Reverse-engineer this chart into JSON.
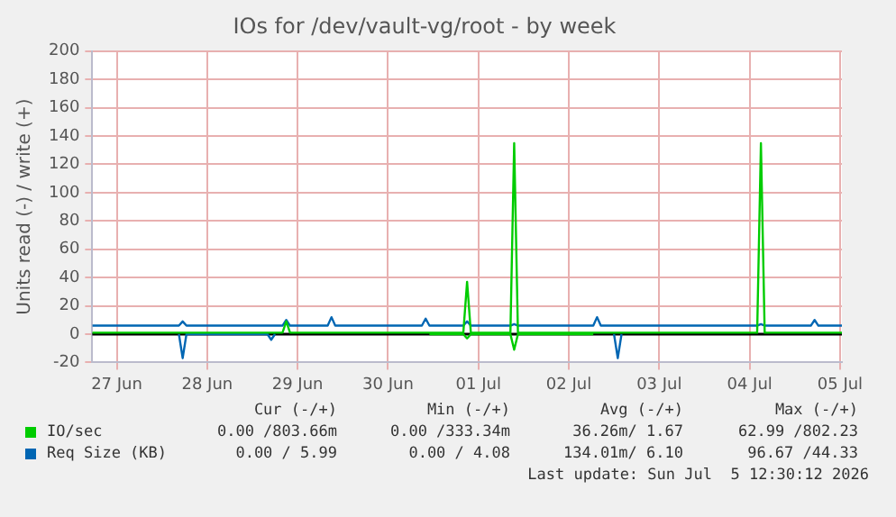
{
  "chart_data": {
    "type": "line",
    "title": "IOs for /dev/vault-vg/root - by week",
    "ylabel": "Units read (-) / write (+)",
    "x": [
      "2026-06-27T05:30",
      "2026-06-28T04:30",
      "2026-06-28T05:30",
      "2026-06-28T06:30",
      "2026-06-29T04:00",
      "2026-06-29T05:00",
      "2026-06-29T06:00",
      "2026-06-29T08:00",
      "2026-06-29T09:00",
      "2026-06-29T10:00",
      "2026-06-29T20:00",
      "2026-06-29T21:00",
      "2026-06-29T22:00",
      "2026-06-30T21:00",
      "2026-06-30T22:00",
      "2026-06-30T23:00",
      "2026-07-01T08:00",
      "2026-07-01T09:00",
      "2026-07-01T10:00",
      "2026-07-01T20:30",
      "2026-07-01T21:30",
      "2026-07-01T22:30",
      "2026-07-02T18:30",
      "2026-07-02T19:30",
      "2026-07-02T20:30",
      "2026-07-03T00:00",
      "2026-07-03T01:00",
      "2026-07-03T02:00",
      "2026-07-04T14:00",
      "2026-07-04T15:00",
      "2026-07-04T16:00",
      "2026-07-05T04:15",
      "2026-07-05T05:15",
      "2026-07-05T06:15",
      "2026-07-05T12:30"
    ],
    "series": [
      {
        "name": "IO/sec",
        "color": "#00cc00",
        "values": [
          1,
          1,
          1,
          1,
          1,
          1,
          1,
          1,
          9,
          1,
          1,
          1,
          1,
          1,
          1,
          1,
          1,
          37,
          1,
          1,
          135,
          1,
          1,
          1,
          1,
          1,
          1,
          1,
          1,
          135,
          1,
          1,
          1,
          1,
          1
        ]
      },
      {
        "name": "Req Size (KB)",
        "color": "#0066b3",
        "values": [
          6,
          6,
          9,
          6,
          6,
          6,
          6,
          6,
          10,
          6,
          6,
          12,
          6,
          6,
          11,
          6,
          6,
          9,
          6,
          6,
          7,
          6,
          6,
          12,
          6,
          6,
          6,
          6,
          6,
          7,
          6,
          6,
          10,
          6,
          6
        ]
      },
      {
        "color": "#00cc00",
        "values": [
          null,
          null,
          null,
          null,
          null,
          null,
          null,
          null,
          null,
          null,
          null,
          null,
          null,
          null,
          null,
          0,
          0,
          -3,
          0,
          0,
          -11,
          0,
          0,
          null,
          null,
          null,
          null,
          null,
          null,
          null,
          null,
          null,
          null,
          null,
          null
        ]
      },
      {
        "color": "#0066b3",
        "values": [
          null,
          0,
          -17,
          0,
          0,
          -4,
          0,
          null,
          null,
          null,
          null,
          null,
          null,
          null,
          null,
          null,
          null,
          null,
          null,
          null,
          null,
          null,
          null,
          null,
          null,
          0,
          -17,
          0,
          null,
          null,
          null,
          null,
          null,
          null,
          null
        ]
      }
    ],
    "xlim": [
      "2026-06-27T05:30",
      "2026-07-05T12:30"
    ],
    "xticks": [
      {
        "value": "2026-06-27T12:00",
        "label": "27 Jun"
      },
      {
        "value": "2026-06-28T12:00",
        "label": "28 Jun"
      },
      {
        "value": "2026-06-29T12:00",
        "label": "29 Jun"
      },
      {
        "value": "2026-06-30T12:00",
        "label": "30 Jun"
      },
      {
        "value": "2026-07-01T12:00",
        "label": "01 Jul"
      },
      {
        "value": "2026-07-02T12:00",
        "label": "02 Jul"
      },
      {
        "value": "2026-07-03T12:00",
        "label": "03 Jul"
      },
      {
        "value": "2026-07-04T12:00",
        "label": "04 Jul"
      },
      {
        "value": "2026-07-05T12:00",
        "label": "05 Jul"
      }
    ],
    "ylim": [
      -20,
      200
    ],
    "yticks": [
      -20,
      0,
      20,
      40,
      60,
      80,
      100,
      120,
      140,
      160,
      180,
      200
    ],
    "grid": true,
    "legend": "bottom",
    "marker": "none",
    "ref_lines": [
      {
        "axis": "y",
        "value": 0,
        "color": "#000000"
      }
    ],
    "annotations": [
      "Cur (-/+)",
      "Min (-/+)",
      "Avg (-/+)",
      "Max (-/+)",
      "0.00 /803.66m",
      "0.00 /333.34m",
      "36.26m/ 1.67",
      "62.99 /802.23",
      "0.00 / 5.99",
      "0.00 / 4.08",
      "134.01m/ 6.10",
      "96.67 /44.33",
      "Last update: Sun Jul  5 12:30:12 2026"
    ]
  }
}
